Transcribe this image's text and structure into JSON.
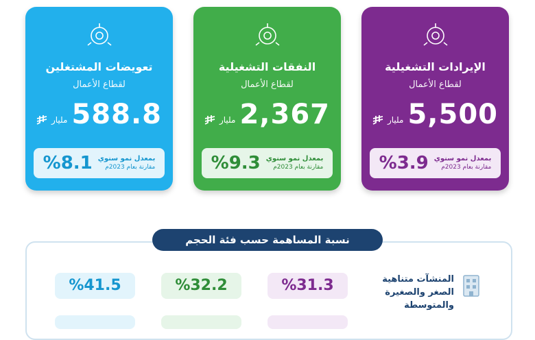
{
  "cards": [
    {
      "title": "الإيرادات التشغيلية",
      "subtitle": "لقطاع الأعمال",
      "value": "5,500",
      "unit": "مليار",
      "growth": "%3.9",
      "growth_label": "بمعدل نمو سنوي",
      "growth_note": "مقارنة بعام 2023م"
    },
    {
      "title": "النفقات التشغيلية",
      "subtitle": "لقطاع الأعمال",
      "value": "2,367",
      "unit": "مليار",
      "growth": "%9.3",
      "growth_label": "بمعدل نمو سنوي",
      "growth_note": "مقارنة بعام 2023م"
    },
    {
      "title": "تعويضات المشتغلين",
      "subtitle": "لقطاع الأعمال",
      "value": "588.8",
      "unit": "مليار",
      "growth": "%8.1",
      "growth_label": "بمعدل نمو سنوي",
      "growth_note": "مقارنة بعام 2023م"
    }
  ],
  "contribution": {
    "title": "نسبة المساهمة حسب فئة الحجم",
    "rows": [
      {
        "label": "المنشآت متناهية الصغر والصغيرة والمتوسطة",
        "values": [
          "%31.3",
          "%32.2",
          "%41.5"
        ]
      }
    ]
  }
}
